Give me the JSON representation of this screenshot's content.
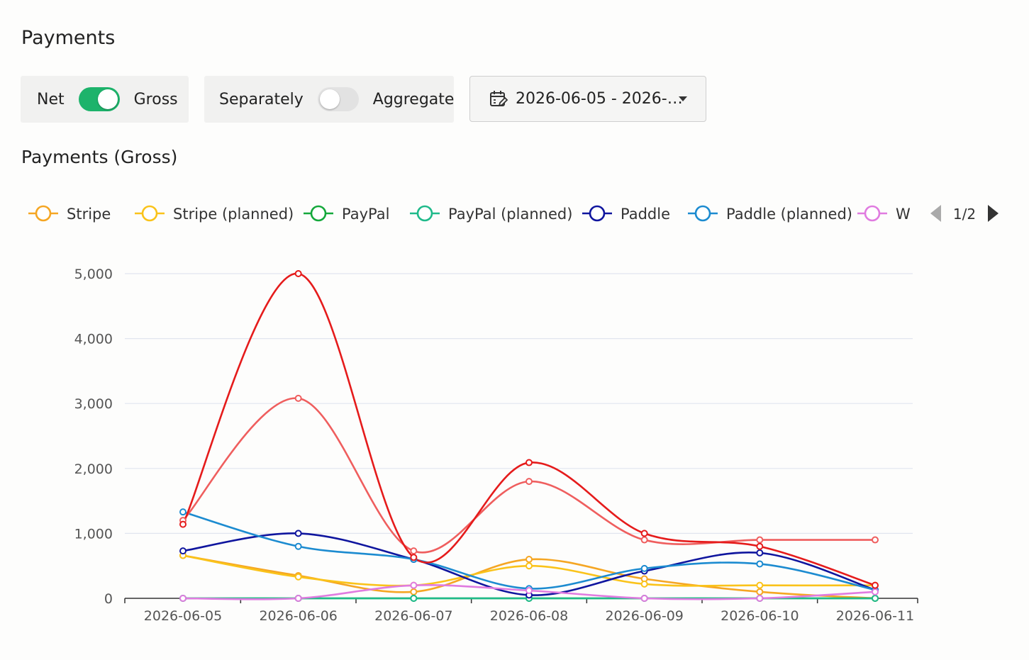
{
  "page": {
    "title": "Payments"
  },
  "controls": {
    "mode_toggle": {
      "left_label": "Net",
      "right_label": "Gross",
      "on": true
    },
    "grouping_toggle": {
      "left_label": "Separately",
      "right_label": "Aggregate",
      "on": false
    },
    "date_range": {
      "value": "2026-06-05 - 2026-…"
    }
  },
  "chart_section": {
    "title": "Payments (Gross)"
  },
  "legend": {
    "visible_items": [
      "Stripe",
      "Stripe (planned)",
      "PayPal",
      "PayPal (planned)",
      "Paddle",
      "Paddle (planned)",
      "W"
    ],
    "page_indicator": "1/2"
  },
  "chart_data": {
    "type": "line",
    "title": "Payments (Gross)",
    "x": [
      "2026-06-05",
      "2026-06-06",
      "2026-06-07",
      "2026-06-08",
      "2026-06-09",
      "2026-06-10",
      "2026-06-11"
    ],
    "ylim": [
      0,
      5000
    ],
    "yticks": [
      0,
      1000,
      2000,
      3000,
      4000,
      5000
    ],
    "ytick_labels": [
      "0",
      "1,000",
      "2,000",
      "3,000",
      "4,000",
      "5,000"
    ],
    "grid": true,
    "legend_position": "top",
    "series": [
      {
        "name": "Stripe",
        "color": "#f5a623",
        "values": [
          660,
          350,
          100,
          600,
          300,
          100,
          0
        ]
      },
      {
        "name": "Stripe (planned)",
        "color": "#fac31a",
        "values": [
          660,
          330,
          200,
          500,
          220,
          200,
          200
        ]
      },
      {
        "name": "PayPal",
        "color": "#14a83b",
        "values": [
          0,
          0,
          0,
          0,
          0,
          0,
          0
        ]
      },
      {
        "name": "PayPal (planned)",
        "color": "#1fba8a",
        "values": [
          0,
          0,
          0,
          0,
          0,
          0,
          0
        ]
      },
      {
        "name": "Paddle",
        "color": "#0f159e",
        "values": [
          730,
          1000,
          600,
          50,
          420,
          700,
          130
        ]
      },
      {
        "name": "Paddle (planned)",
        "color": "#1c8bd0",
        "values": [
          1330,
          800,
          600,
          150,
          460,
          530,
          130
        ]
      },
      {
        "name": "W",
        "color": "#e07be0",
        "values": [
          0,
          0,
          200,
          120,
          0,
          0,
          100
        ]
      },
      {
        "color": "#ef5e5e",
        "values": [
          1200,
          3080,
          730,
          1800,
          900,
          900,
          900
        ]
      },
      {
        "color": "#e51b1b",
        "values": [
          1140,
          5000,
          630,
          2090,
          1000,
          800,
          200
        ]
      }
    ]
  }
}
